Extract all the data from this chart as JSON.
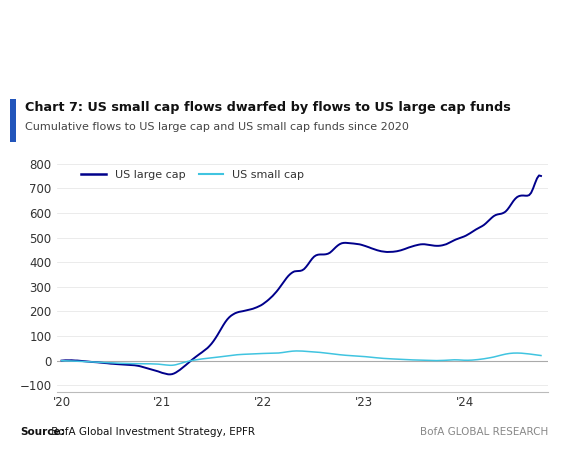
{
  "title": "Chart 7: US small cap flows dwarfed by flows to US large cap funds",
  "subtitle": "Cumulative flows to US large cap and US small cap funds since 2020",
  "source_bold": "Source:",
  "source_rest": " BofA Global Investment Strategy, EPFR",
  "branding": "BofA GLOBAL RESEARCH",
  "large_cap_color": "#00008B",
  "small_cap_color": "#40C4E0",
  "background_color": "#FFFFFF",
  "ylim": [
    -125,
    825
  ],
  "yticks": [
    -100,
    0,
    100,
    200,
    300,
    400,
    500,
    600,
    700,
    800
  ],
  "xtick_positions": [
    2020.0,
    2021.0,
    2022.0,
    2023.0,
    2024.0
  ],
  "xtick_labels": [
    "'20",
    "'21",
    "'22",
    "'23",
    "'24"
  ],
  "legend_large": "US large cap",
  "legend_small": "US small cap",
  "accent_bar_color": "#2255BB",
  "zero_line_color": "#AAAAAA",
  "grid_color": "#E8E8E8"
}
